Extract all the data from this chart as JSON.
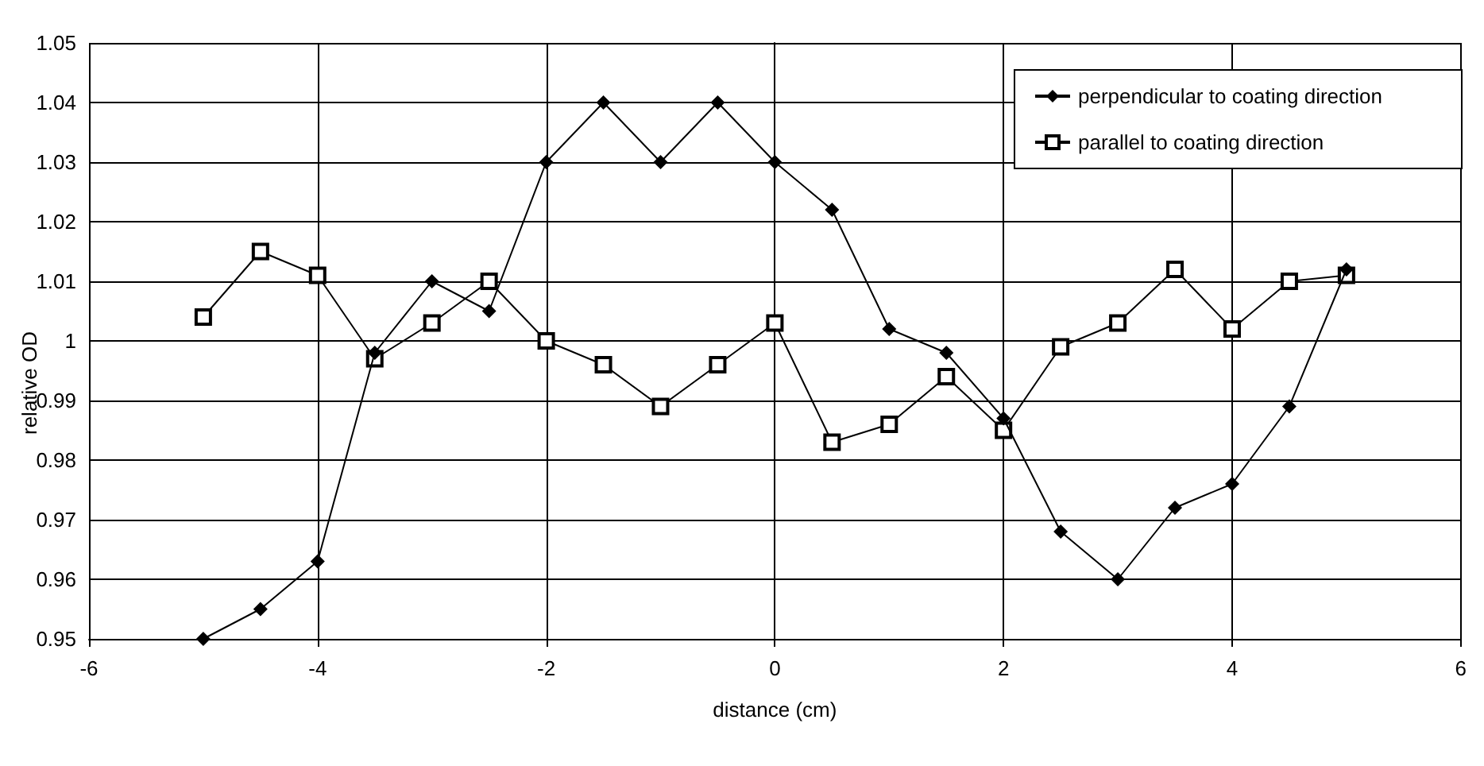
{
  "chart_data": {
    "type": "line",
    "xlabel": "distance (cm)",
    "ylabel": "relative OD",
    "x": [
      -5,
      -4.5,
      -4,
      -3.5,
      -3,
      -2.5,
      -2,
      -1.5,
      -1,
      -0.5,
      0,
      0.5,
      1,
      1.5,
      2,
      2.5,
      3,
      3.5,
      4,
      4.5,
      5
    ],
    "series": [
      {
        "name": "perpendicular to coating direction",
        "color": "#000000",
        "marker": "diamond",
        "values": [
          0.95,
          0.955,
          0.963,
          0.998,
          1.01,
          1.005,
          1.03,
          1.04,
          1.03,
          1.04,
          1.03,
          1.022,
          1.002,
          0.998,
          0.987,
          0.968,
          0.96,
          0.972,
          0.976,
          0.989,
          1.012
        ]
      },
      {
        "name": "parallel to coating direction",
        "color": "#000000",
        "marker": "square",
        "values": [
          1.004,
          1.015,
          1.011,
          0.997,
          1.003,
          1.01,
          1.0,
          0.996,
          0.989,
          0.996,
          1.003,
          0.983,
          0.986,
          0.994,
          0.985,
          0.999,
          1.003,
          1.012,
          1.002,
          1.01,
          1.011
        ]
      }
    ],
    "xlim": [
      -6,
      6
    ],
    "xticks": [
      -6,
      -4,
      -2,
      0,
      2,
      4,
      6
    ],
    "ylim": [
      0.95,
      1.05
    ],
    "yticks": [
      0.95,
      0.96,
      0.97,
      0.98,
      0.99,
      1,
      1.01,
      1.02,
      1.03,
      1.04,
      1.05
    ],
    "grid": true,
    "legend": "top right",
    "line_style": "solid"
  }
}
